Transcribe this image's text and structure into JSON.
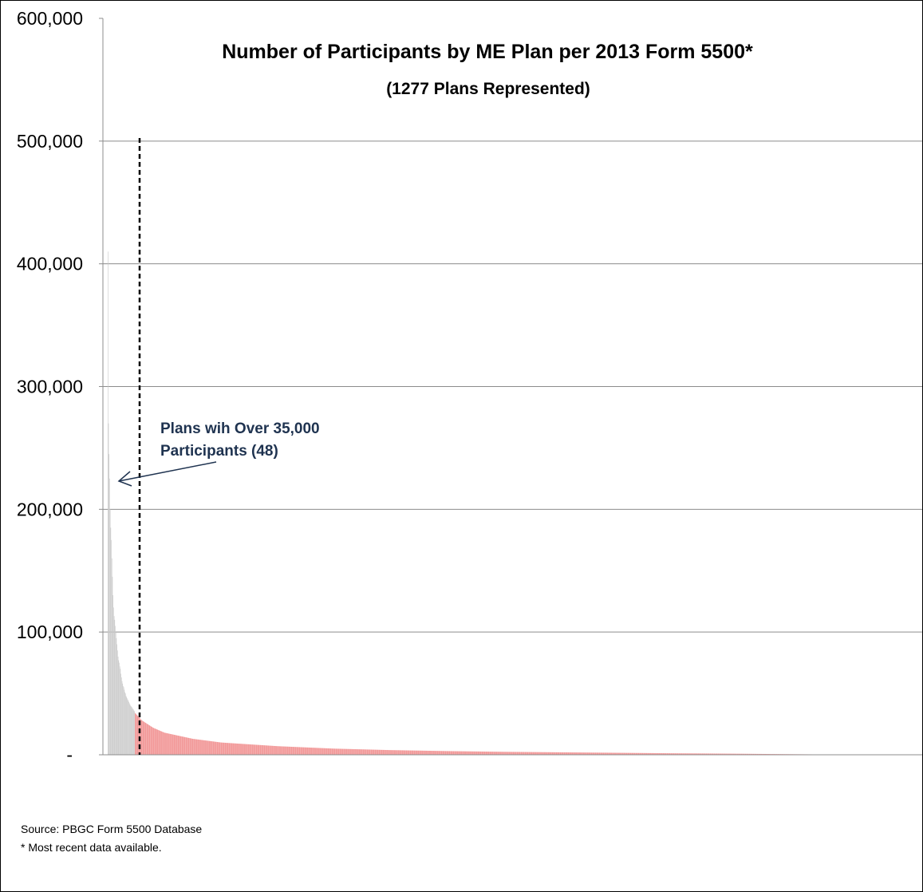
{
  "colors": {
    "large_plan_bar": "#c8c8c8",
    "small_plan_bar": "#f08a8a",
    "gridline": "#8c8c8c",
    "annotation": "#1f3350",
    "divider_line": "#000000"
  },
  "chart_data": {
    "type": "bar",
    "title": "Number of Participants by ME Plan per 2013 Form 5500*",
    "subtitle": "(1277 Plans Represented)",
    "xlabel": "",
    "ylabel": "",
    "ylim": [
      0,
      600000
    ],
    "y_ticks": [
      0,
      100000,
      200000,
      300000,
      400000,
      500000,
      600000
    ],
    "y_tick_labels": [
      "-",
      "100,000",
      "200,000",
      "300,000",
      "400,000",
      "500,000",
      "600,000"
    ],
    "grid": true,
    "legend": "none",
    "plan_count": 1277,
    "threshold_plan_index": 48,
    "series": [
      {
        "values_approx_descending": [
          410000,
          270000,
          245000,
          225000,
          200000,
          185000,
          175000,
          160000,
          145000,
          130000,
          120000,
          113000,
          110000,
          105000,
          100000,
          95000,
          90000,
          85000,
          80000,
          77000,
          75000,
          72000,
          70000,
          66000,
          63000,
          60000,
          58000,
          56000,
          55000,
          53000,
          51000,
          50000,
          48000,
          47000,
          46000,
          45000,
          44000,
          43000,
          42000,
          41000,
          40000,
          39500,
          39000,
          38000,
          37500,
          37000,
          36000,
          35500
        ]
      },
      {
        "anchor_index": [
          48,
          60,
          80,
          100,
          150,
          200,
          300,
          400,
          500,
          600,
          700,
          800,
          900,
          1000,
          1100,
          1200,
          1277
        ],
        "anchor_value": [
          34000,
          28000,
          22000,
          18000,
          13000,
          10000,
          7000,
          5000,
          3800,
          3000,
          2400,
          2000,
          1600,
          1200,
          900,
          500,
          200
        ]
      }
    ],
    "annotations": [
      {
        "text_lines": [
          "Plans wih Over 35,000",
          "Participants (48)"
        ],
        "points_to": "large-plan bars"
      }
    ]
  },
  "footnotes": {
    "source": "Source: PBGC Form 5500 Database",
    "asterisk": "* Most recent data available."
  }
}
